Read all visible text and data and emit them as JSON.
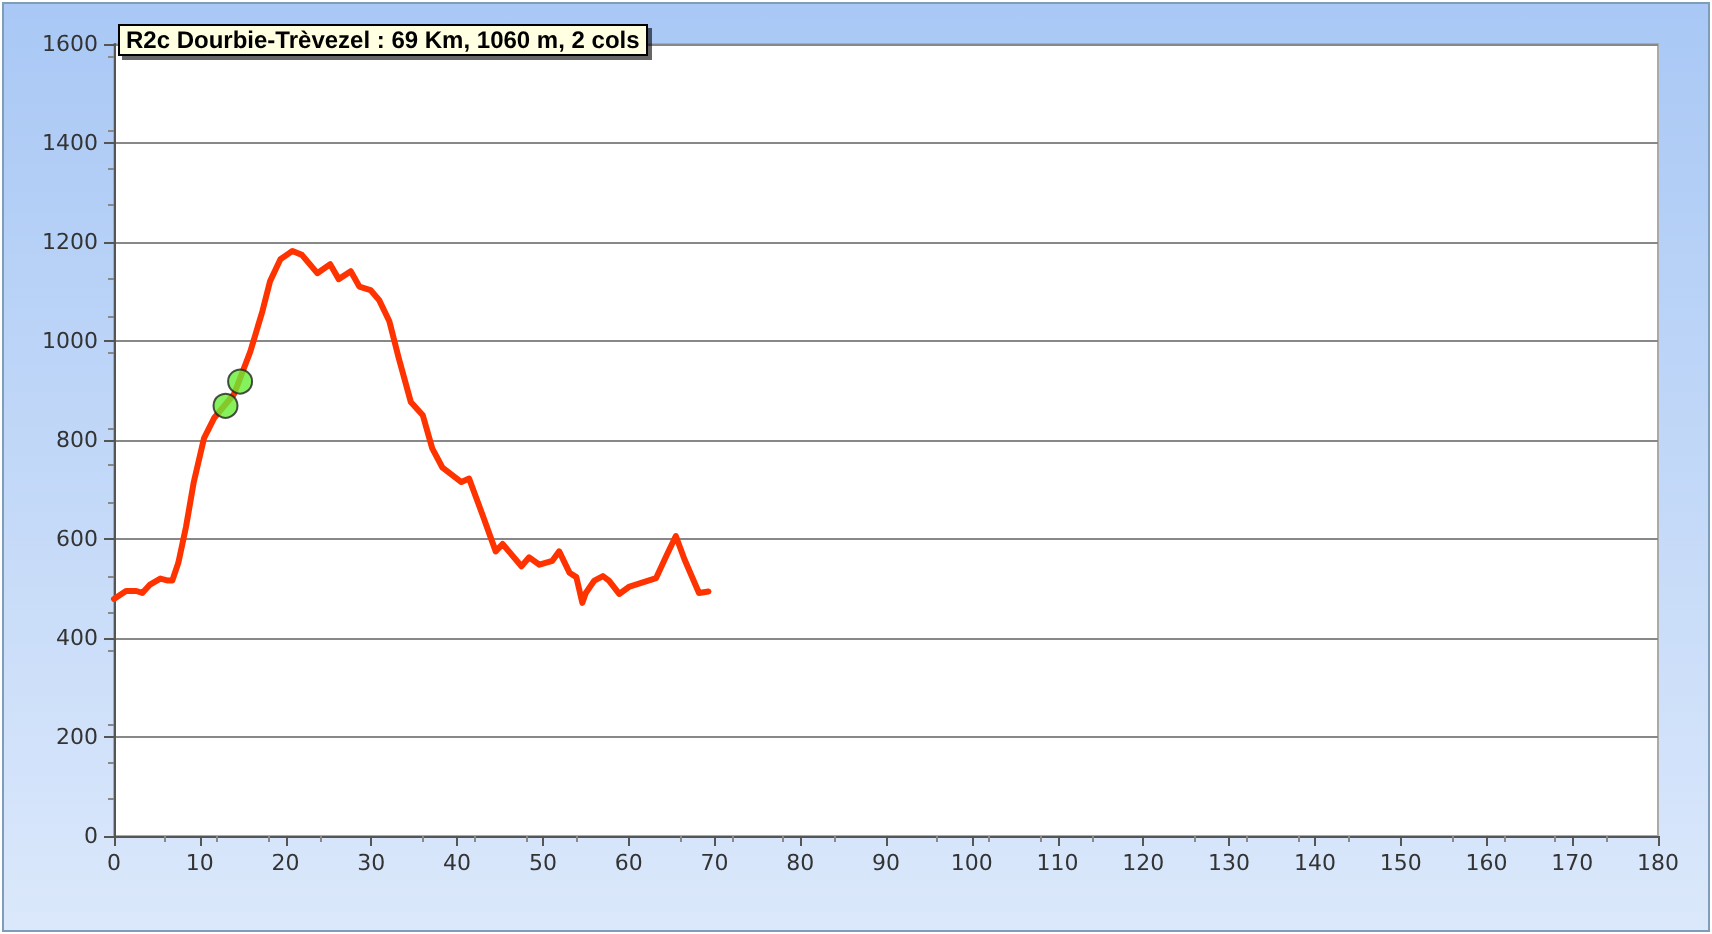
{
  "chart_data": {
    "type": "line",
    "title": "R2c Dourbie-Trèvezel : 69 Km, 1060 m, 2 cols",
    "series": [
      {
        "color": "#ff3300",
        "marker": "none",
        "line_style": "solid",
        "x": [
          0,
          1.4,
          2.6,
          3.3,
          4.2,
          5.4,
          6.3,
          6.8,
          7.5,
          8.4,
          9.3,
          10.5,
          11.7,
          14,
          15.9,
          17.3,
          18.2,
          19.4,
          20.8,
          21.9,
          23.7,
          25.2,
          26.2,
          27.6,
          28.6,
          29.9,
          30.9,
          32.1,
          33.2,
          34.6,
          36,
          37.1,
          38.3,
          40.5,
          41.4,
          43,
          44.5,
          45.3,
          47.5,
          48.4,
          49.6,
          51.1,
          51.9,
          53.1,
          53.9,
          54.6,
          55,
          56,
          57,
          57.7,
          58.9,
          60.1,
          63.2,
          64.4,
          65.5,
          66.5,
          68.2,
          69.3
        ],
        "values": [
          479,
          495,
          495,
          491,
          508,
          520,
          516,
          516,
          552,
          625,
          715,
          804,
          845,
          893,
          979,
          1060,
          1121,
          1165,
          1182,
          1174,
          1137,
          1155,
          1125,
          1141,
          1110,
          1103,
          1083,
          1040,
          965,
          877,
          850,
          783,
          744,
          715,
          722,
          647,
          575,
          590,
          545,
          563,
          548,
          556,
          575,
          532,
          523,
          471,
          491,
          516,
          525,
          516,
          489,
          504,
          521,
          566,
          606,
          559,
          491,
          494
        ]
      },
      {
        "type": "scatter",
        "color": "#66ee33",
        "marker": "circle",
        "x": [
          13,
          14.7
        ],
        "values": [
          869,
          918
        ]
      }
    ],
    "xlim": [
      0,
      180
    ],
    "xticks": [
      0,
      10,
      20,
      30,
      40,
      50,
      60,
      70,
      80,
      90,
      100,
      110,
      120,
      130,
      140,
      150,
      160,
      170,
      180
    ],
    "ylim": [
      0,
      1600
    ],
    "yticks": [
      0,
      200,
      400,
      600,
      800,
      1000,
      1200,
      1400,
      1600
    ],
    "grid": "y"
  }
}
